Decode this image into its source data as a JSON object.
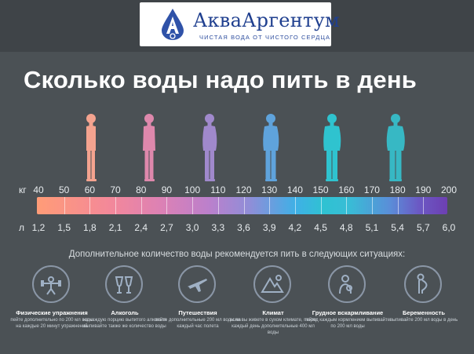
{
  "logo": {
    "name": "АкваАргентум",
    "tagline": "ЧИСТАЯ ВОДА ОТ ЧИСТОГО СЕРДЦА"
  },
  "title": "Сколько воды надо пить в день",
  "figures": [
    {
      "name": "figure-salmon",
      "color": "#f4a38f"
    },
    {
      "name": "figure-pink",
      "color": "#de88ac"
    },
    {
      "name": "figure-lavender",
      "color": "#a089cc"
    },
    {
      "name": "figure-blue",
      "color": "#5fa3dc"
    },
    {
      "name": "figure-teal",
      "color": "#2fc3cf"
    },
    {
      "name": "figure-turquoise",
      "color": "#37b8c4"
    }
  ],
  "scale": {
    "weight_unit": "кг",
    "volume_unit": "л",
    "weights": [
      "40",
      "50",
      "60",
      "70",
      "80",
      "90",
      "100",
      "110",
      "120",
      "130",
      "140",
      "150",
      "160",
      "170",
      "180",
      "190",
      "200"
    ],
    "volumes": [
      "1,2",
      "1,5",
      "1,8",
      "2,1",
      "2,4",
      "2,7",
      "3,0",
      "3,3",
      "3,6",
      "3,9",
      "4,2",
      "4,5",
      "4,8",
      "5,1",
      "5,4",
      "5,7",
      "6,0"
    ]
  },
  "extra_heading": "Дополнительное количество воды рекомендуется пить в следующих ситуациях:",
  "situations": [
    {
      "title": "Физические упражнения",
      "desc": "пейте дополнительно по 200 мл воды на каждые 20 минут упражнений",
      "icon": "dumbbell-icon"
    },
    {
      "title": "Алкоголь",
      "desc": "на каждую порцию выпитого алкоголя выпивайте также же количество воды",
      "icon": "glasses-icon"
    },
    {
      "title": "Путешествия",
      "desc": "пейте дополнительные 200 мл воды на каждый час полета",
      "icon": "airplane-icon"
    },
    {
      "title": "Климат",
      "desc": "если вы живете в сухом климате, пейте каждый день дополнительные 400 мл воды",
      "icon": "mountain-icon"
    },
    {
      "title": "Грудное вскармливание",
      "desc": "перед каждым кормлением выпивайте по 200 мл воды",
      "icon": "mother-child-icon"
    },
    {
      "title": "Беременность",
      "desc": "выпивайте 200 мл воды в день",
      "icon": "pregnancy-icon"
    }
  ],
  "colors": {
    "background": "#4b5155",
    "logo_blue": "#1f3f8f",
    "ring": "#8a96a6"
  }
}
